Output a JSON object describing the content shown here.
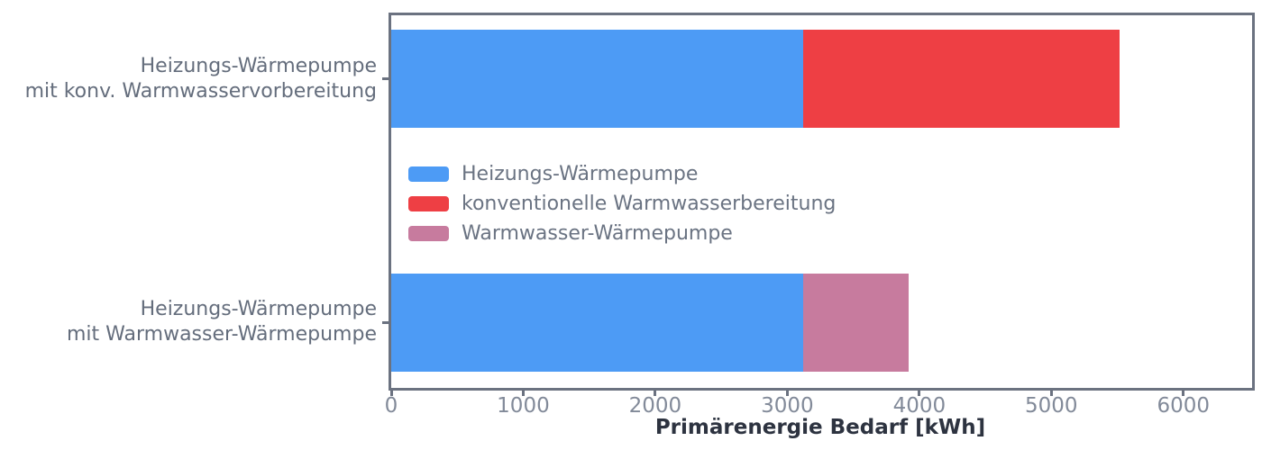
{
  "chart_data": {
    "type": "bar",
    "orientation": "horizontal",
    "stacked": true,
    "xlabel": "Primärenergie Bedarf [kWh]",
    "xlim": [
      0,
      6500
    ],
    "xticks": [
      0,
      1000,
      2000,
      3000,
      4000,
      5000,
      6000
    ],
    "grid": false,
    "legend_position": "inside-upper-left",
    "categories": [
      {
        "label_lines": [
          "Heizungs-Wärmepumpe",
          "mit konv. Warmwasservorbereitung"
        ],
        "total": 5520
      },
      {
        "label_lines": [
          "Heizungs-Wärmepumpe",
          "mit Warmwasser-Wärmepumpe"
        ],
        "total": 3920
      }
    ],
    "series": [
      {
        "name": "Heizungs-Wärmepumpe",
        "color": "#4D9BF5",
        "values": [
          3120,
          3120
        ]
      },
      {
        "name": "konventionelle Warmwasserbereitung",
        "color": "#EE3F44",
        "values": [
          2400,
          0
        ]
      },
      {
        "name": "Warmwasser-Wärmepumpe",
        "color": "#C77B9E",
        "values": [
          0,
          800
        ]
      }
    ]
  },
  "colors": {
    "spine": "#6B7280",
    "tick_label": "#828A99",
    "category_label": "#646D7C",
    "legend_label": "#6A7382",
    "axis_title": "#2D3340",
    "background": "#ffffff"
  }
}
